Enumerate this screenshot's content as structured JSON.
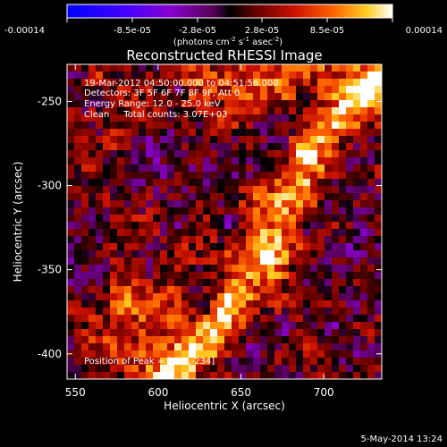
{
  "chart_data": {
    "type": "heatmap",
    "title": "Reconstructed RHESSI Image",
    "xlabel": "Heliocentric X (arcsec)",
    "ylabel": "Heliocentric Y (arcsec)",
    "xlim": [
      545,
      735
    ],
    "ylim": [
      -415,
      -228
    ],
    "xticks": [
      550,
      600,
      650,
      700
    ],
    "yticks": [
      -250,
      -300,
      -350,
      -400
    ],
    "xtick_labels": [
      "550",
      "600",
      "650",
      "700"
    ],
    "ytick_labels": [
      "-250",
      "-300",
      "-350",
      "-400"
    ],
    "colorbar": {
      "min": -0.00014,
      "max": 0.00014,
      "tick_labels": [
        "-0.00014",
        "-8.5e-05",
        "-2.8e-05",
        "2.8e-05",
        "8.5e-05",
        "0.00014"
      ],
      "units_label": "(photons cm",
      "units_exp1": "-2",
      "units_mid": " s",
      "units_exp2": "-1",
      "units_mid2": " asec",
      "units_exp3": "-2",
      "units_end": ")"
    },
    "annotations": [
      "19-Mar-2012 04:50:00.000 to 04:51:56.000",
      "Detectors: 3F 5F 6F 7F 8F 9F, Att 0",
      "Energy Range: 12.0 - 25.0 keV",
      "Clean     Total counts: 3.07E+03"
    ],
    "peak_label": "Position of Peak = [665,-234]",
    "peak": [
      665,
      -234
    ],
    "grid": false
  },
  "footer": {
    "date": "5-May-2014 13:24"
  }
}
